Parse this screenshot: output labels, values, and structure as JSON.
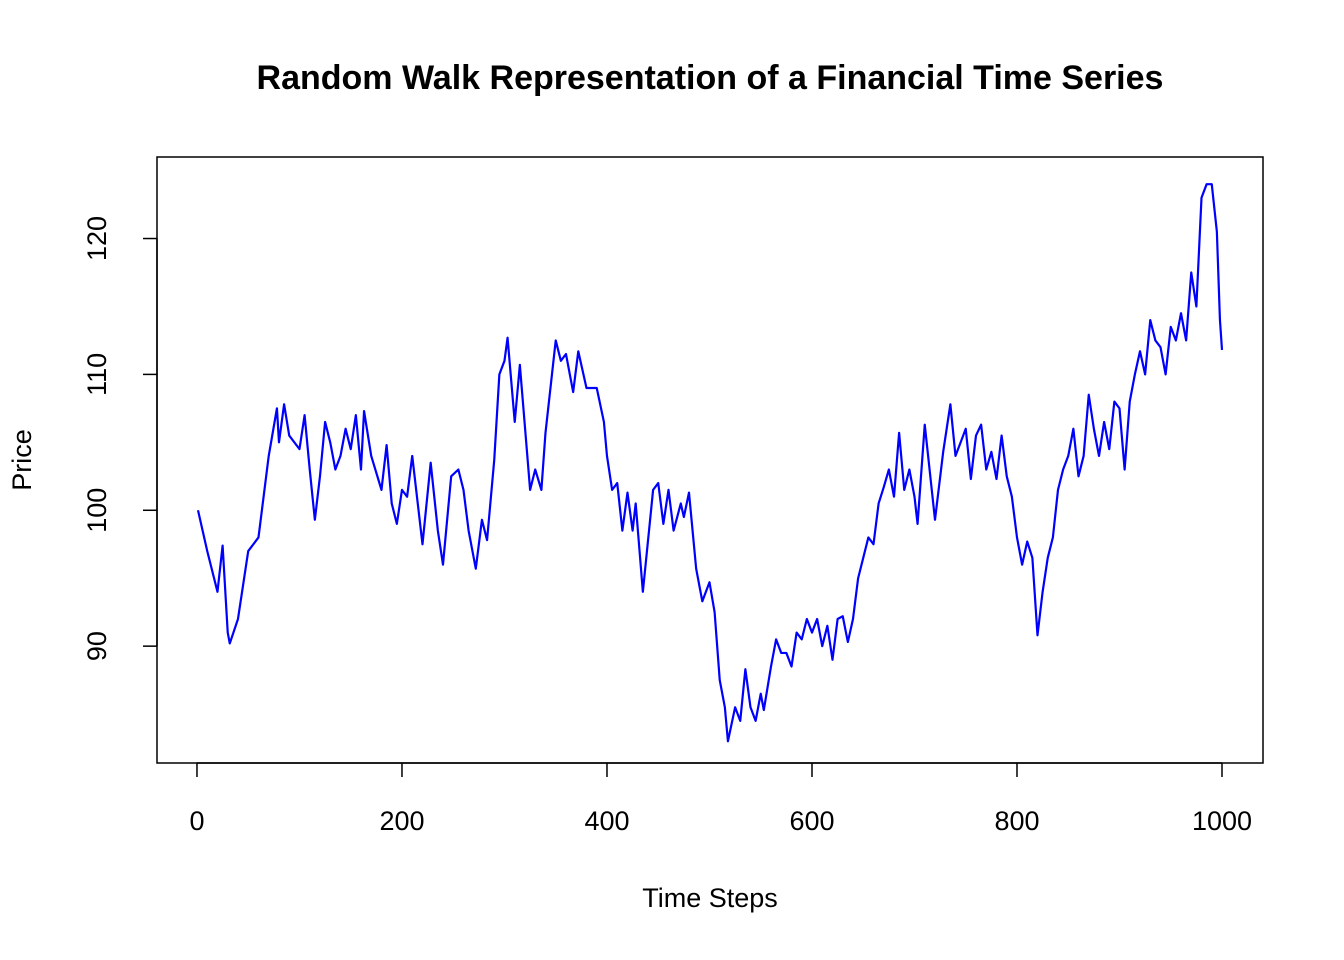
{
  "chart_data": {
    "type": "line",
    "title": "Random Walk Representation of a Financial Time Series",
    "x_label": "Time Steps",
    "y_label": "Price",
    "x": [
      1,
      10,
      20,
      25,
      30,
      32,
      40,
      50,
      60,
      70,
      78,
      80,
      85,
      90,
      100,
      105,
      110,
      115,
      120,
      125,
      130,
      135,
      140,
      145,
      150,
      155,
      160,
      163,
      170,
      180,
      185,
      190,
      195,
      200,
      205,
      210,
      220,
      228,
      235,
      240,
      248,
      255,
      260,
      265,
      272,
      278,
      283,
      290,
      295,
      300,
      303,
      310,
      315,
      325,
      330,
      336,
      340,
      350,
      355,
      360,
      367,
      372,
      380,
      390,
      397,
      400,
      405,
      410,
      415,
      420,
      425,
      428,
      435,
      445,
      450,
      455,
      460,
      465,
      472,
      475,
      480,
      487,
      493,
      500,
      505,
      510,
      515,
      518,
      525,
      530,
      535,
      540,
      545,
      550,
      553,
      560,
      565,
      570,
      575,
      580,
      585,
      590,
      595,
      600,
      605,
      610,
      615,
      620,
      625,
      630,
      635,
      640,
      645,
      655,
      660,
      665,
      670,
      675,
      680,
      685,
      690,
      695,
      700,
      703,
      710,
      720,
      728,
      735,
      740,
      745,
      750,
      755,
      760,
      765,
      770,
      775,
      780,
      785,
      790,
      795,
      800,
      805,
      810,
      815,
      820,
      825,
      830,
      835,
      840,
      845,
      850,
      855,
      860,
      865,
      870,
      875,
      880,
      885,
      890,
      895,
      900,
      905,
      910,
      915,
      920,
      925,
      930,
      935,
      940,
      945,
      950,
      955,
      960,
      965,
      970,
      975,
      980,
      985,
      990,
      995,
      998,
      1000
    ],
    "series": [
      {
        "name": "Price",
        "color": "#0000ff",
        "values": [
          100,
          97,
          94,
          97.4,
          91,
          90.2,
          92,
          97,
          98,
          104,
          107.5,
          105,
          107.8,
          105.5,
          104.5,
          107,
          103,
          99.3,
          102.5,
          106.5,
          105,
          103,
          104,
          106,
          104.5,
          107,
          103,
          107.3,
          104,
          101.5,
          104.8,
          100.5,
          99,
          101.5,
          101,
          104,
          97.5,
          103.5,
          98.5,
          96,
          102.5,
          103,
          101.5,
          98.5,
          95.7,
          99.3,
          97.8,
          103.7,
          110,
          111,
          112.7,
          106.5,
          110.7,
          101.5,
          103,
          101.5,
          105.7,
          112.5,
          111,
          111.5,
          108.7,
          111.7,
          109,
          109,
          106.5,
          104,
          101.5,
          102,
          98.5,
          101.3,
          98.5,
          100.5,
          94,
          101.5,
          102,
          99,
          101.5,
          98.5,
          100.5,
          99.5,
          101.3,
          95.7,
          93.3,
          94.7,
          92.5,
          87.5,
          85.5,
          83,
          85.5,
          84.5,
          88.3,
          85.5,
          84.5,
          86.5,
          85.3,
          88.5,
          90.5,
          89.5,
          89.5,
          88.5,
          91,
          90.5,
          92,
          91,
          92,
          90,
          91.5,
          89,
          92,
          92.2,
          90.3,
          92,
          95,
          98,
          97.5,
          100.5,
          101.7,
          103,
          101,
          105.7,
          101.5,
          103,
          101,
          99,
          106.3,
          99.3,
          104.3,
          107.8,
          104,
          105,
          106,
          102.3,
          105.5,
          106.3,
          103,
          104.3,
          102.3,
          105.5,
          102.5,
          101,
          98,
          96,
          97.7,
          96.5,
          90.8,
          94,
          96.5,
          98,
          101.5,
          103,
          104,
          106,
          102.5,
          104,
          108.5,
          106,
          104,
          106.5,
          104.5,
          108,
          107.5,
          103,
          108,
          110,
          111.7,
          110,
          114,
          112.5,
          112,
          110,
          113.5,
          112.5,
          114.5,
          112.5,
          117.5,
          115,
          123,
          124,
          124,
          120.5,
          114,
          111.8
        ]
      }
    ],
    "xlim": [
      -39,
      1040
    ],
    "ylim": [
      81.4,
      126
    ],
    "xticks": [
      0,
      200,
      400,
      600,
      800,
      1000
    ],
    "yticks": [
      90,
      100,
      110,
      120
    ]
  }
}
